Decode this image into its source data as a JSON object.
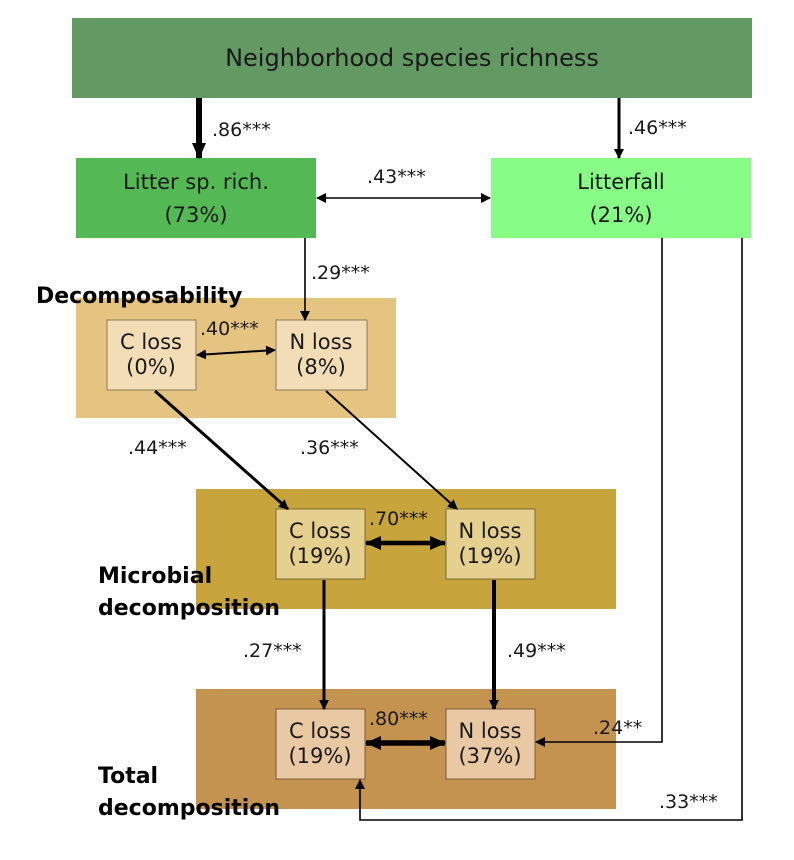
{
  "colors": {
    "top": "#639a63",
    "litter_rich": "#54b854",
    "litterfall": "#87fc87",
    "decomposability_band": "#e5c482",
    "microbial_band": "#c8a43d",
    "total_band": "#c4934f",
    "small_box_decomp": "#f2ddb6",
    "small_box_micro": "#e5d08f",
    "small_box_total": "#e9c9a3"
  },
  "nodes": {
    "top": {
      "label": "Neighborhood species richness"
    },
    "litter_rich": {
      "line1": "Litter sp. rich.",
      "line2": "(73%)"
    },
    "litterfall": {
      "line1": "Litterfall",
      "line2": "(21%)"
    },
    "decomp_c": {
      "line1": "C loss",
      "line2": "(0%)"
    },
    "decomp_n": {
      "line1": "N loss",
      "line2": "(8%)"
    },
    "micro_c": {
      "line1": "C loss",
      "line2": "(19%)"
    },
    "micro_n": {
      "line1": "N loss",
      "line2": "(19%)"
    },
    "total_c": {
      "line1": "C loss",
      "line2": "(19%)"
    },
    "total_n": {
      "line1": "N loss",
      "line2": "(37%)"
    }
  },
  "sections": {
    "decomposability": "Decomposability",
    "microbial_line1": "Microbial",
    "microbial_line2": "decomposition",
    "total_line1": "Total",
    "total_line2": "decomposition"
  },
  "paths": {
    "top_to_litter_rich": ".86***",
    "top_to_litterfall": ".46***",
    "litter_rich_litterfall": ".43***",
    "litter_rich_to_decomp_n": ".29***",
    "decomp_c_n": ".40***",
    "decomp_c_to_micro_c": ".44***",
    "decomp_n_to_micro_n": ".36***",
    "micro_c_n": ".70***",
    "micro_c_to_total_c": ".27***",
    "micro_n_to_total_n": ".49***",
    "total_c_n": ".80***",
    "litterfall_to_total_n": ".24**",
    "litterfall_to_total_c": ".33***"
  }
}
